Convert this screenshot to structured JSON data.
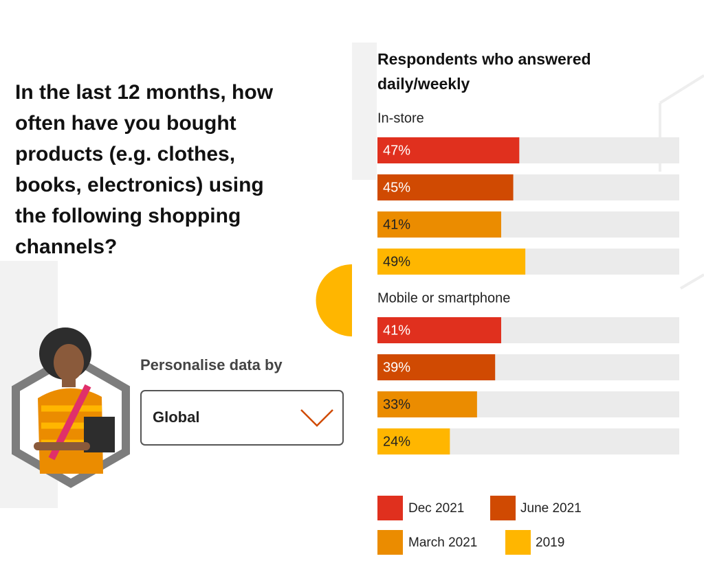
{
  "question": "In the last 12 months, how often have you bought products (e.g. clothes, books, electronics) using the following shopping channels?",
  "personalise": {
    "label": "Personalise data by",
    "selected": "Global"
  },
  "chart_data": {
    "type": "bar",
    "orientation": "horizontal",
    "title": "Respondents who answered daily/weekly",
    "categories": [
      "In-store",
      "Mobile or smartphone"
    ],
    "xlim": [
      0,
      100
    ],
    "series": [
      {
        "name": "Dec 2021",
        "color": "#e0301e",
        "values": [
          47,
          41
        ],
        "value_labels": [
          "47%",
          "41%"
        ]
      },
      {
        "name": "June 2021",
        "color": "#d04a02",
        "values": [
          45,
          39
        ],
        "value_labels": [
          "45%",
          "39%"
        ]
      },
      {
        "name": "March 2021",
        "color": "#eb8c00",
        "values": [
          41,
          33
        ],
        "value_labels": [
          "41%",
          "33%"
        ]
      },
      {
        "name": "2019",
        "color": "#ffb600",
        "values": [
          49,
          24
        ],
        "value_labels": [
          "49%",
          "24%"
        ]
      }
    ]
  }
}
